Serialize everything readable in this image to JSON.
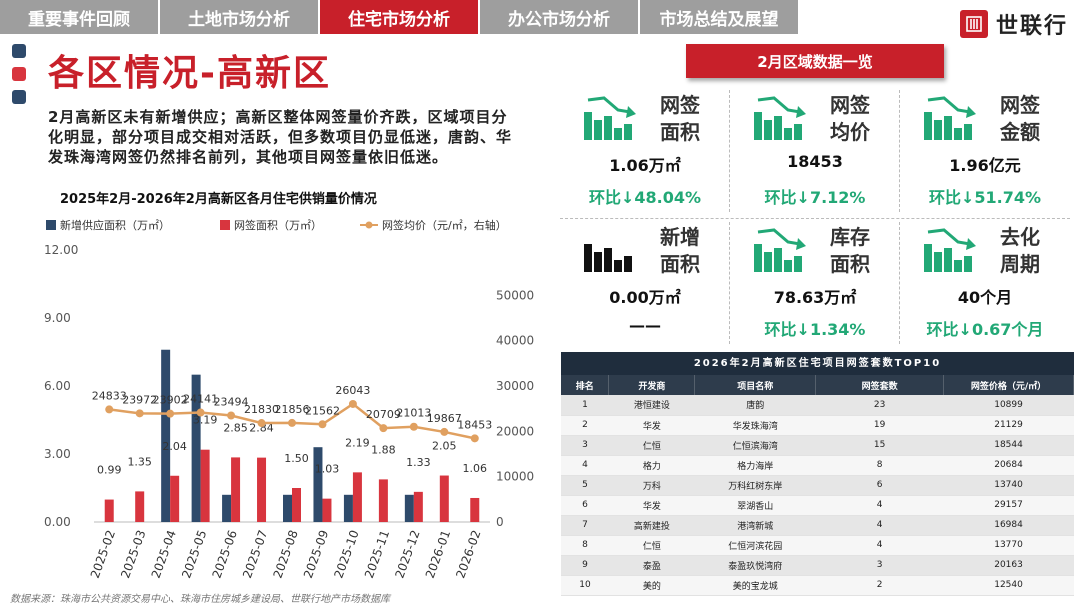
{
  "nav": {
    "tabs": [
      {
        "label": "重要事件回顾",
        "active": false
      },
      {
        "label": "土地市场分析",
        "active": false
      },
      {
        "label": "住宅市场分析",
        "active": true
      },
      {
        "label": "办公市场分析",
        "active": false
      },
      {
        "label": "市场总结及展望",
        "active": false
      }
    ],
    "brand": "世联行"
  },
  "colors": {
    "accent_red": "#c8202a",
    "navy": "#2e4a6b",
    "green": "#22a876",
    "line_orange": "#e0a060"
  },
  "page": {
    "title": "各区情况-高新区",
    "intro": "2月高新区未有新增供应；高新区整体网签量价齐跌，区域项目分化明显，部分项目成交相对活跃，但多数项目仍显低迷，唐韵、华发珠海湾网签仍然排名前列，其他项目网签量依旧低迷。",
    "chart_title": "2025年2月-2026年2月高新区各月住宅供销量价情况",
    "source": "数据来源：珠海市公共资源交易中心、珠海市住房城乡建设局、世联行地产市场数据库"
  },
  "chart_data": {
    "type": "bar",
    "categories": [
      "2025-02",
      "2025-03",
      "2025-04",
      "2025-05",
      "2025-06",
      "2025-07",
      "2025-08",
      "2025-09",
      "2025-10",
      "2025-11",
      "2025-12",
      "2026-01",
      "2026-02"
    ],
    "series": [
      {
        "name": "新增供应面积（万㎡）",
        "kind": "bar",
        "axis": "left",
        "color": "#2e4a6b",
        "values": [
          0,
          0,
          7.6,
          6.5,
          1.2,
          0,
          1.2,
          3.3,
          1.2,
          0,
          1.2,
          0,
          0
        ],
        "labels": []
      },
      {
        "name": "网签面积（万㎡）",
        "kind": "bar",
        "axis": "left",
        "color": "#d8353e",
        "values": [
          0.99,
          1.35,
          2.04,
          3.19,
          2.85,
          2.84,
          1.5,
          1.03,
          2.19,
          1.88,
          1.33,
          2.05,
          1.06
        ],
        "labels": [
          "0.99",
          "1.35",
          "2.04",
          "3.19",
          "2.85",
          "2.84",
          "1.50",
          "1.03",
          "2.19",
          "1.88",
          "1.33",
          "2.05",
          "1.06"
        ]
      },
      {
        "name": "网签均价（元/㎡，右轴）",
        "kind": "line",
        "axis": "right",
        "color": "#e0a060",
        "values": [
          24833,
          23972,
          23902,
          24141,
          23494,
          21830,
          21856,
          21562,
          26043,
          20709,
          21013,
          19867,
          18453
        ],
        "labels": [
          "24833",
          "23972",
          "23902",
          "24141",
          "23494",
          "21830",
          "21856",
          "21562",
          "26043",
          "20709",
          "21013",
          "19867",
          "18453"
        ]
      }
    ],
    "y_left": {
      "range": [
        0,
        12
      ],
      "ticks": [
        "0.00",
        "3.00",
        "6.00",
        "9.00",
        "12.00"
      ]
    },
    "y_right": {
      "range": [
        0,
        60000
      ],
      "ticks": [
        "0",
        "10000",
        "20000",
        "30000",
        "40000",
        "50000"
      ]
    },
    "legend_position": "top",
    "grid": false
  },
  "stats": {
    "header": "2月区域数据一览",
    "cards": [
      {
        "label_line1": "网签",
        "label_line2": "面积",
        "value": "1.06万㎡",
        "change": "环比↓48.04%",
        "icon": "bar-chart-down-icon"
      },
      {
        "label_line1": "网签",
        "label_line2": "均价",
        "value": "18453",
        "change": "环比↓7.12%",
        "icon": "bar-chart-down-icon"
      },
      {
        "label_line1": "网签",
        "label_line2": "金额",
        "value": "1.96亿元",
        "change": "环比↓51.74%",
        "icon": "bar-chart-down-icon"
      },
      {
        "label_line1": "新增",
        "label_line2": "面积",
        "value": "0.00万㎡",
        "change": "——",
        "icon": "bar-chart-icon"
      },
      {
        "label_line1": "库存",
        "label_line2": "面积",
        "value": "78.63万㎡",
        "change": "环比↓1.34%",
        "icon": "bar-chart-down-icon"
      },
      {
        "label_line1": "去化",
        "label_line2": "周期",
        "value": "40个月",
        "change": "环比↓0.67个月",
        "icon": "bar-chart-down-icon"
      }
    ]
  },
  "table": {
    "title": "2026年2月高新区住宅项目网签套数TOP10",
    "headers": [
      "排名",
      "开发商",
      "项目名称",
      "网签套数",
      "网签价格（元/㎡）"
    ],
    "rows": [
      [
        "1",
        "港恒建设",
        "唐韵",
        "23",
        "10899"
      ],
      [
        "2",
        "华发",
        "华发珠海湾",
        "19",
        "21129"
      ],
      [
        "3",
        "仁恒",
        "仁恒滨海湾",
        "15",
        "18544"
      ],
      [
        "4",
        "格力",
        "格力海岸",
        "8",
        "20684"
      ],
      [
        "5",
        "万科",
        "万科红树东岸",
        "6",
        "13740"
      ],
      [
        "6",
        "华发",
        "翠湖香山",
        "4",
        "29157"
      ],
      [
        "7",
        "高新建投",
        "港湾新城",
        "4",
        "16984"
      ],
      [
        "8",
        "仁恒",
        "仁恒河滨花园",
        "4",
        "13770"
      ],
      [
        "9",
        "泰盈",
        "泰盈玖悦湾府",
        "3",
        "20163"
      ],
      [
        "10",
        "美的",
        "美的宝龙城",
        "2",
        "12540"
      ]
    ]
  }
}
